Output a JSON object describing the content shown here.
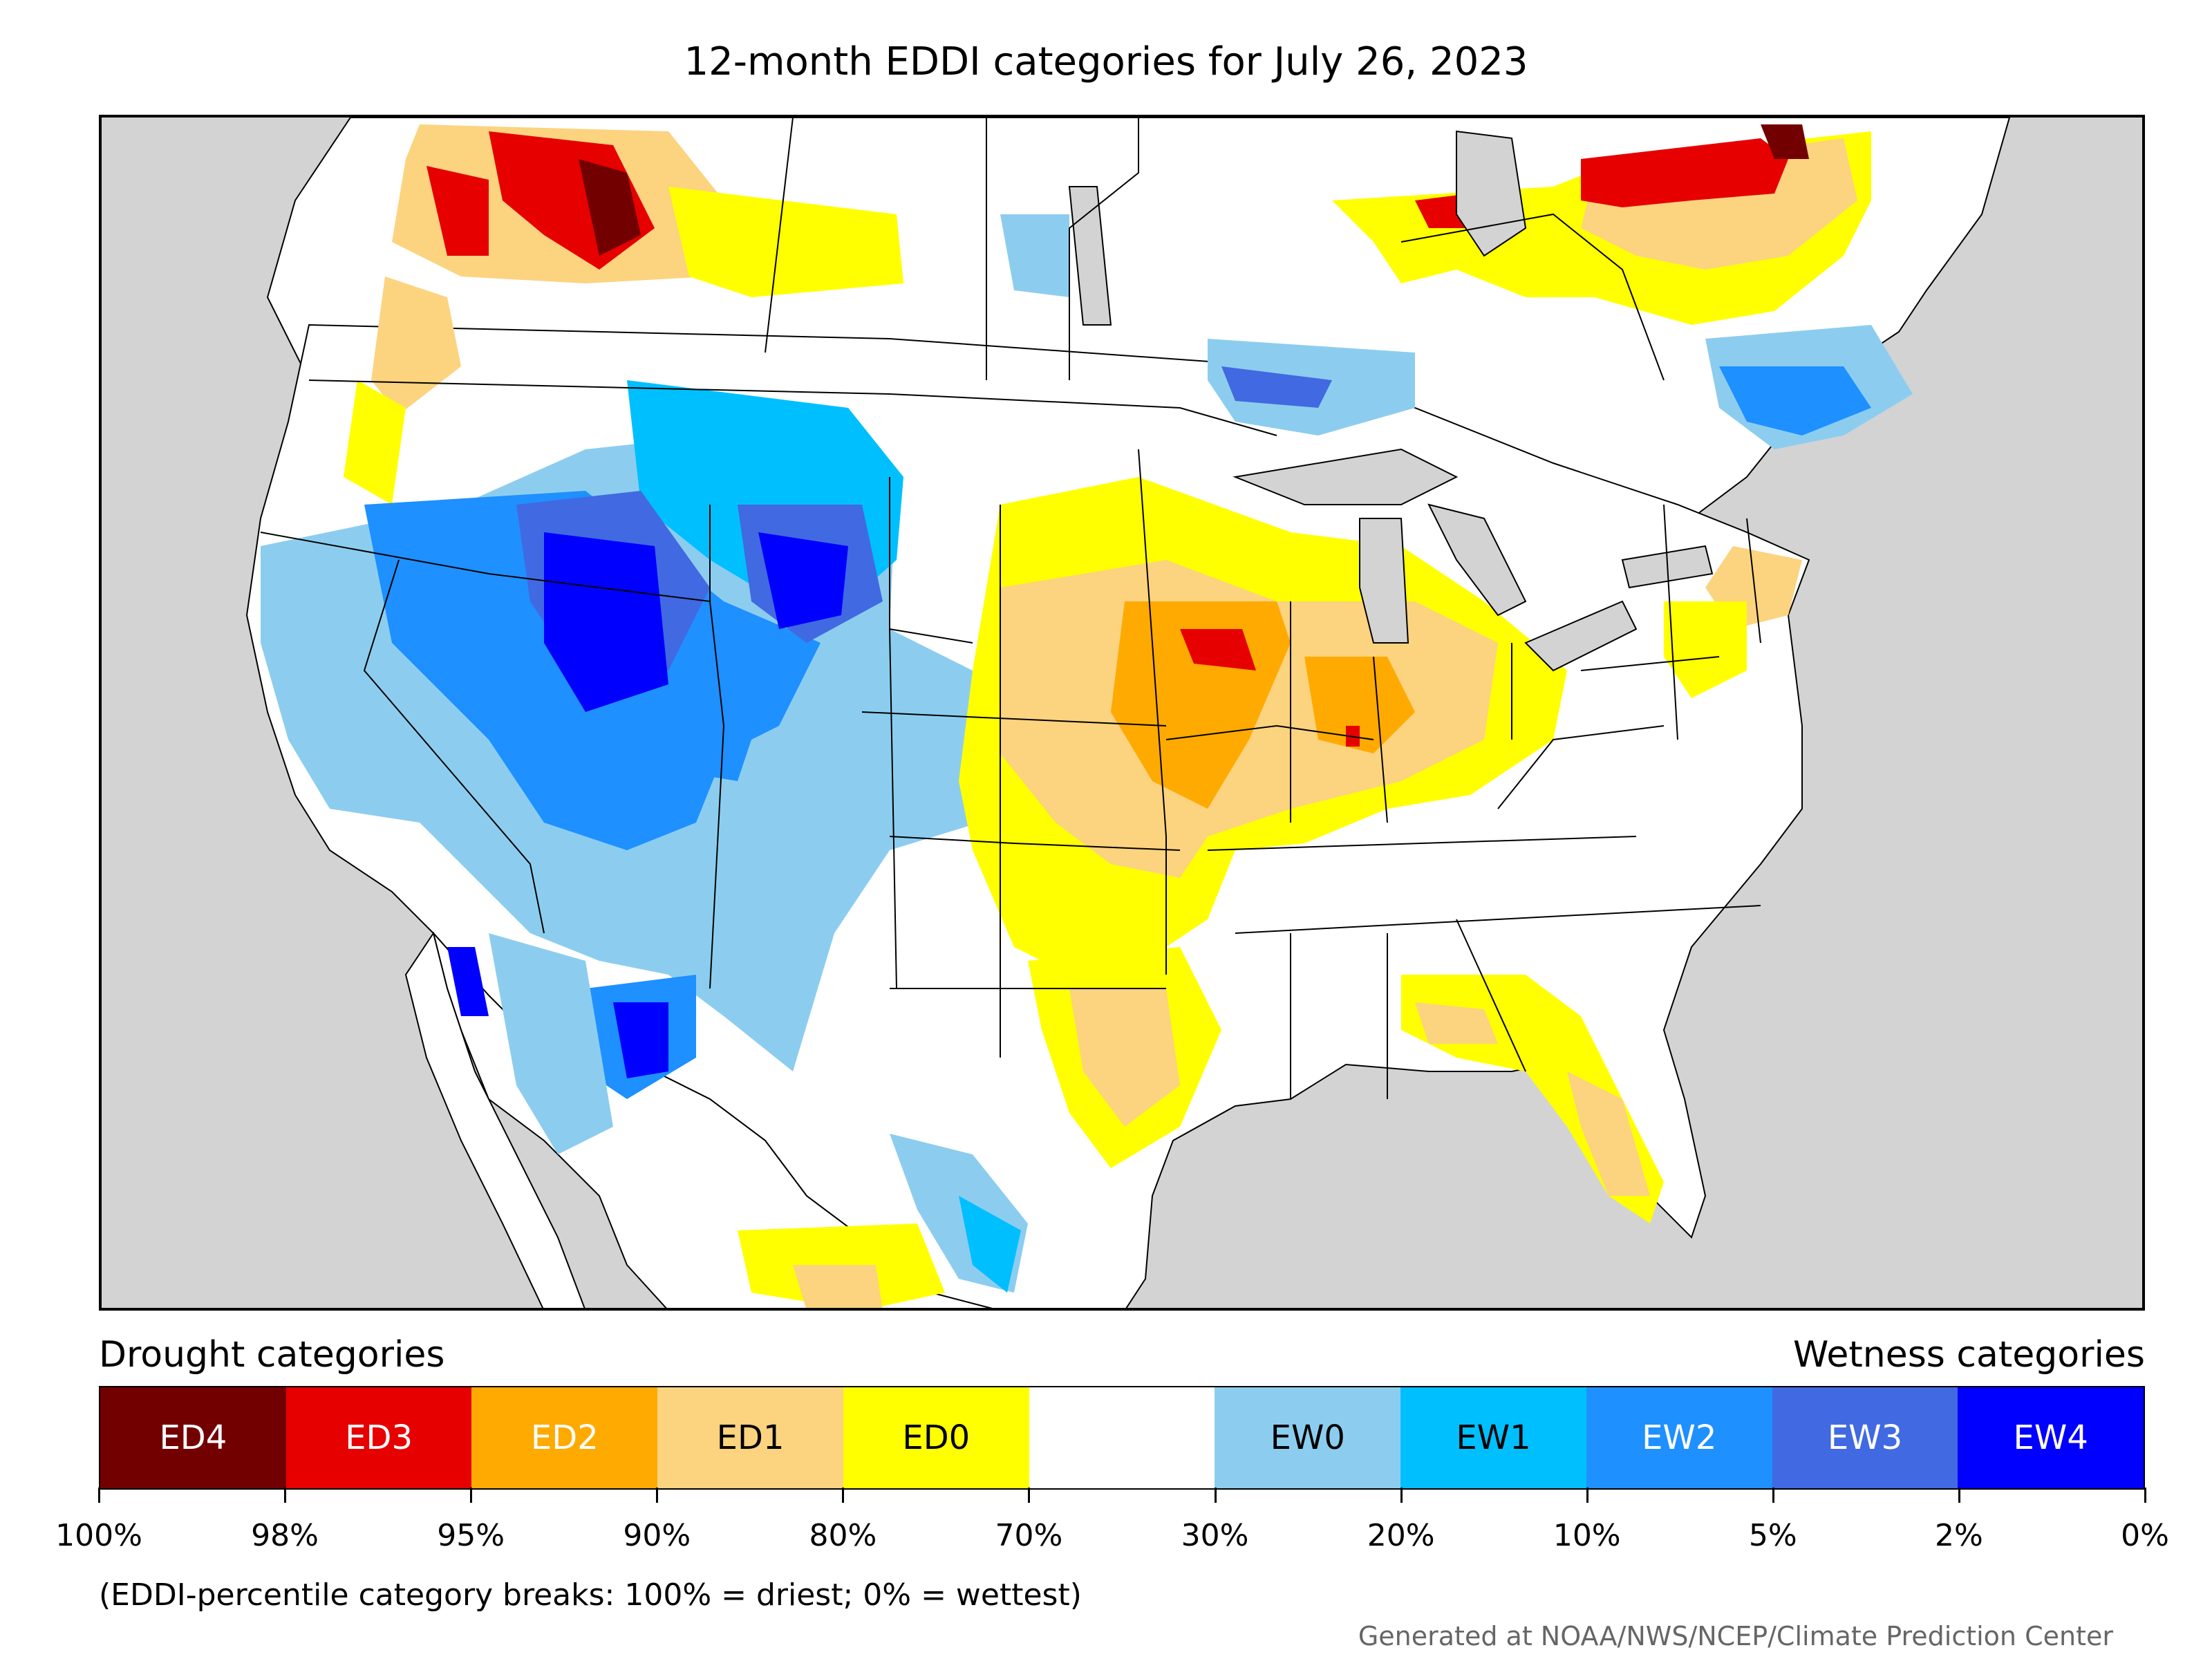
{
  "title": "12-month EDDI categories for July 26, 2023",
  "legend": {
    "left_label": "Drought categories",
    "right_label": "Wetness categories",
    "categories": [
      {
        "label": "ED4",
        "color": "#730000",
        "text_color": "#ffffff"
      },
      {
        "label": "ED3",
        "color": "#e60000",
        "text_color": "#ffffff"
      },
      {
        "label": "ED2",
        "color": "#ffaa00",
        "text_color": "#ffffff"
      },
      {
        "label": "ED1",
        "color": "#fcd37f",
        "text_color": "#000000"
      },
      {
        "label": "ED0",
        "color": "#ffff00",
        "text_color": "#000000"
      },
      {
        "label": "",
        "color": "#ffffff",
        "text_color": "#000000"
      },
      {
        "label": "EW0",
        "color": "#8ccdef",
        "text_color": "#000000"
      },
      {
        "label": "EW1",
        "color": "#00bfff",
        "text_color": "#000000"
      },
      {
        "label": "EW2",
        "color": "#1e90ff",
        "text_color": "#ffffff"
      },
      {
        "label": "EW3",
        "color": "#4169e1",
        "text_color": "#ffffff"
      },
      {
        "label": "EW4",
        "color": "#0000ff",
        "text_color": "#ffffff"
      }
    ],
    "tick_labels": [
      "100%",
      "98%",
      "95%",
      "90%",
      "80%",
      "70%",
      "30%",
      "20%",
      "10%",
      "5%",
      "2%",
      "0%"
    ]
  },
  "note": "(EDDI-percentile category breaks: 100% = driest; 0% = wettest)",
  "credit": "Generated at NOAA/NWS/NCEP/Climate Prediction Center",
  "map": {
    "ocean_color": "#d3d3d3",
    "land_color": "#ffffff"
  }
}
